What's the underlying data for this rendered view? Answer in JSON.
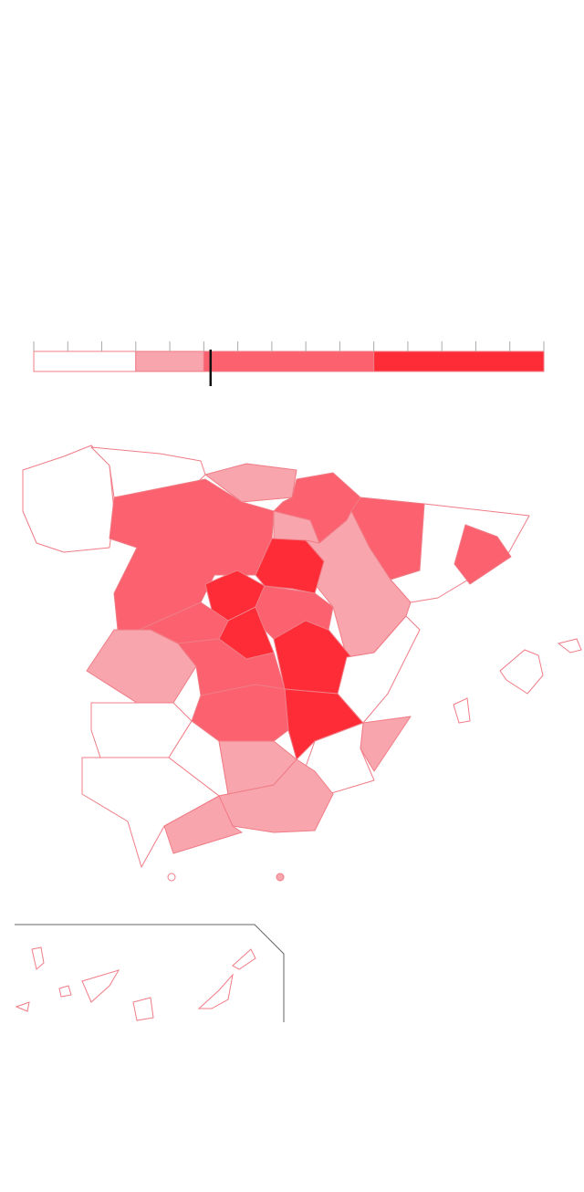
{
  "legend": {
    "min": 0,
    "max": 15,
    "ticks": [
      0,
      1,
      2,
      3,
      4,
      5,
      6,
      7,
      8,
      9,
      10,
      11,
      12,
      13,
      14,
      15
    ],
    "breaks": [
      0,
      3,
      5,
      10,
      15
    ],
    "colors": [
      "#ffffff",
      "#f9a5ad",
      "#fb616e",
      "#fd2c37"
    ],
    "marker": 5.2
  }
}
